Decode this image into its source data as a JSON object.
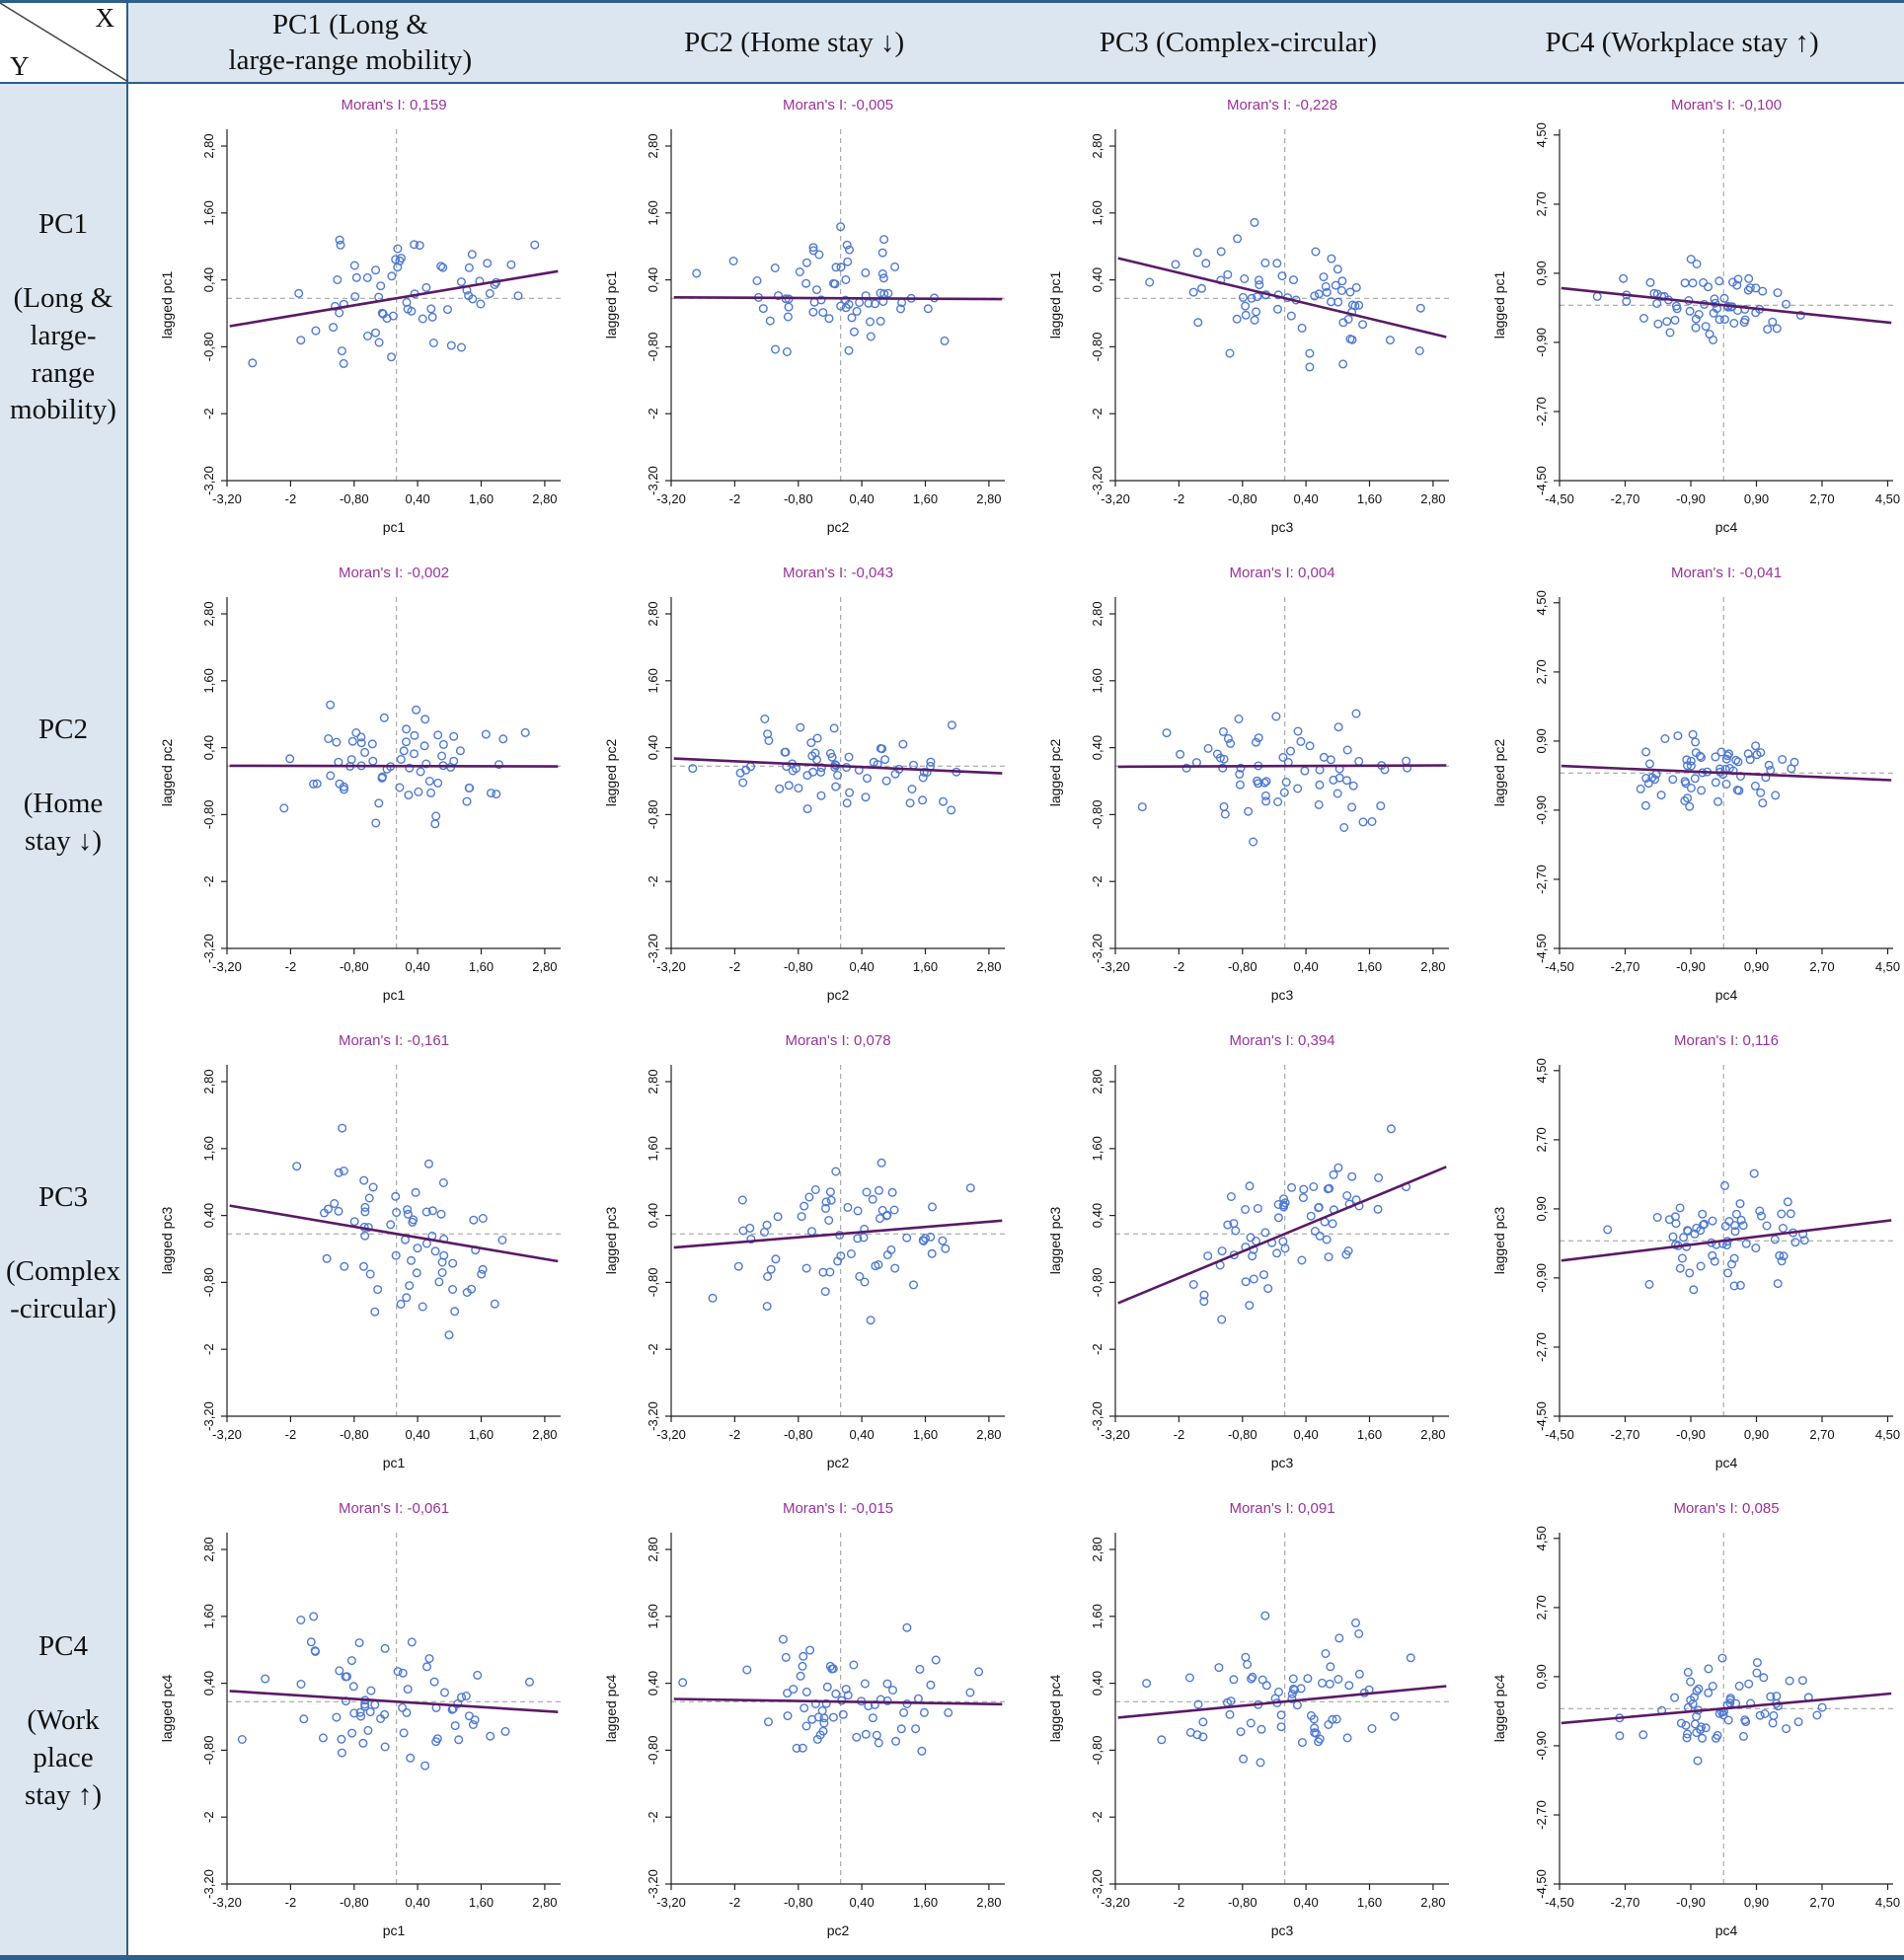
{
  "style": {
    "accent_border": "#2c5f8a",
    "header_bg": "#dce6f1",
    "title_color": "#993399",
    "regression_color": "#5a1a66",
    "point_color": "#4f7ad1"
  },
  "table": {
    "corner": {
      "x": "X",
      "y": "Y"
    },
    "col_headers": [
      "PC1 (Long &\nlarge-range mobility)",
      "PC2 (Home stay ↓)",
      "PC3 (Complex-circular)",
      "PC4 (Workplace stay ↑)"
    ],
    "row_headers": [
      "PC1\n\n(Long &\nlarge-\nrange\nmobility)",
      "PC2\n\n(Home\nstay ↓)",
      "PC3\n\n(Complex\n-circular)",
      "PC4\n\n(Work\nplace\nstay ↑)"
    ]
  },
  "chart_data": [
    {
      "type": "scatter",
      "title": "Moran's I: 0,159",
      "moran_i": 0.159,
      "xlabel": "pc1",
      "ylabel": "lagged pc1",
      "x_tick_values": [
        -3.2,
        -2,
        -0.8,
        0.4,
        1.6,
        2.8
      ],
      "x_tick_labels": [
        "-3,20",
        "-2",
        "-0,80",
        "0,40",
        "1,60",
        "2,80"
      ],
      "y_tick_values": [
        -3.2,
        -2,
        -0.8,
        0.4,
        1.6,
        2.8
      ],
      "y_tick_labels": [
        "-3,20",
        "-2",
        "-0,80",
        "0,40",
        "1,60",
        "2,80"
      ],
      "xlim": [
        -3.2,
        3.1
      ],
      "ylim": [
        -3.2,
        3.1
      ],
      "mean_x": 0,
      "mean_y": 0.07,
      "n_points": 66,
      "seed": 7187,
      "x_sd": 1.05,
      "noise_sd": 0.52
    },
    {
      "type": "scatter",
      "title": "Moran's I: -0,005",
      "moran_i": -0.005,
      "xlabel": "pc2",
      "ylabel": "lagged pc1",
      "x_tick_values": [
        -3.2,
        -2,
        -0.8,
        0.4,
        1.6,
        2.8
      ],
      "x_tick_labels": [
        "-3,20",
        "-2",
        "-0,80",
        "0,40",
        "1,60",
        "2,80"
      ],
      "y_tick_values": [
        -3.2,
        -2,
        -0.8,
        0.4,
        1.6,
        2.8
      ],
      "y_tick_labels": [
        "-3,20",
        "-2",
        "-0,80",
        "0,40",
        "1,60",
        "2,80"
      ],
      "xlim": [
        -3.2,
        3.1
      ],
      "ylim": [
        -3.2,
        3.1
      ],
      "mean_x": 0,
      "mean_y": 0.07,
      "n_points": 66,
      "seed": 10459,
      "x_sd": 1.05,
      "noise_sd": 0.52
    },
    {
      "type": "scatter",
      "title": "Moran's I: -0,228",
      "moran_i": -0.228,
      "xlabel": "pc3",
      "ylabel": "lagged pc1",
      "x_tick_values": [
        -3.2,
        -2,
        -0.8,
        0.4,
        1.6,
        2.8
      ],
      "x_tick_labels": [
        "-3,20",
        "-2",
        "-0,80",
        "0,40",
        "1,60",
        "2,80"
      ],
      "y_tick_values": [
        -3.2,
        -2,
        -0.8,
        0.4,
        1.6,
        2.8
      ],
      "y_tick_labels": [
        "-3,20",
        "-2",
        "-0,80",
        "0,40",
        "1,60",
        "2,80"
      ],
      "xlim": [
        -3.2,
        3.1
      ],
      "ylim": [
        -3.2,
        3.1
      ],
      "mean_x": 0,
      "mean_y": 0.07,
      "n_points": 66,
      "seed": 22193,
      "x_sd": 1.05,
      "noise_sd": 0.52
    },
    {
      "type": "scatter",
      "title": "Moran's I: -0,100",
      "moran_i": -0.1,
      "xlabel": "pc4",
      "ylabel": "lagged pc1",
      "x_tick_values": [
        -4.5,
        -2.7,
        -0.9,
        0.9,
        2.7,
        4.5
      ],
      "x_tick_labels": [
        "-4,50",
        "-2,70",
        "-0,90",
        "0,90",
        "2,70",
        "4,50"
      ],
      "y_tick_values": [
        -4.5,
        -2.7,
        -0.9,
        0.9,
        2.7,
        4.5
      ],
      "y_tick_labels": [
        "-4,50",
        "-2,70",
        "-0,90",
        "0,90",
        "2,70",
        "4,50"
      ],
      "xlim": [
        -4.5,
        4.65
      ],
      "ylim": [
        -4.5,
        4.65
      ],
      "mean_x": 0,
      "mean_y": 0.07,
      "n_points": 66,
      "seed": 4099,
      "x_sd": 1.2,
      "noise_sd": 0.5
    },
    {
      "type": "scatter",
      "title": "Moran's I: -0,002",
      "moran_i": -0.002,
      "xlabel": "pc1",
      "ylabel": "lagged pc2",
      "x_tick_values": [
        -3.2,
        -2,
        -0.8,
        0.4,
        1.6,
        2.8
      ],
      "x_tick_labels": [
        "-3,20",
        "-2",
        "-0,80",
        "0,40",
        "1,60",
        "2,80"
      ],
      "y_tick_values": [
        -3.2,
        -2,
        -0.8,
        0.4,
        1.6,
        2.8
      ],
      "y_tick_labels": [
        "-3,20",
        "-2",
        "-0,80",
        "0,40",
        "1,60",
        "2,80"
      ],
      "xlim": [
        -3.2,
        3.1
      ],
      "ylim": [
        -3.2,
        3.1
      ],
      "mean_x": 0,
      "mean_y": 0.07,
      "n_points": 66,
      "seed": 15287,
      "x_sd": 1.05,
      "noise_sd": 0.5
    },
    {
      "type": "scatter",
      "title": "Moran's I: -0,043",
      "moran_i": -0.043,
      "xlabel": "pc2",
      "ylabel": "lagged pc2",
      "x_tick_values": [
        -3.2,
        -2,
        -0.8,
        0.4,
        1.6,
        2.8
      ],
      "x_tick_labels": [
        "-3,20",
        "-2",
        "-0,80",
        "0,40",
        "1,60",
        "2,80"
      ],
      "y_tick_values": [
        -3.2,
        -2,
        -0.8,
        0.4,
        1.6,
        2.8
      ],
      "y_tick_labels": [
        "-3,20",
        "-2",
        "-0,80",
        "0,40",
        "1,60",
        "2,80"
      ],
      "xlim": [
        -3.2,
        3.1
      ],
      "ylim": [
        -3.2,
        3.1
      ],
      "mean_x": 0,
      "mean_y": 0.07,
      "n_points": 66,
      "seed": 30011,
      "x_sd": 1.05,
      "noise_sd": 0.5
    },
    {
      "type": "scatter",
      "title": "Moran's I: 0,004",
      "moran_i": 0.004,
      "xlabel": "pc3",
      "ylabel": "lagged pc2",
      "x_tick_values": [
        -3.2,
        -2,
        -0.8,
        0.4,
        1.6,
        2.8
      ],
      "x_tick_labels": [
        "-3,20",
        "-2",
        "-0,80",
        "0,40",
        "1,60",
        "2,80"
      ],
      "y_tick_values": [
        -3.2,
        -2,
        -0.8,
        0.4,
        1.6,
        2.8
      ],
      "y_tick_labels": [
        "-3,20",
        "-2",
        "-0,80",
        "0,40",
        "1,60",
        "2,80"
      ],
      "xlim": [
        -3.2,
        3.1
      ],
      "ylim": [
        -3.2,
        3.1
      ],
      "mean_x": 0,
      "mean_y": 0.07,
      "n_points": 66,
      "seed": 8731,
      "x_sd": 1.05,
      "noise_sd": 0.5
    },
    {
      "type": "scatter",
      "title": "Moran's I: -0,041",
      "moran_i": -0.041,
      "xlabel": "pc4",
      "ylabel": "lagged pc2",
      "x_tick_values": [
        -4.5,
        -2.7,
        -0.9,
        0.9,
        2.7,
        4.5
      ],
      "x_tick_labels": [
        "-4,50",
        "-2,70",
        "-0,90",
        "0,90",
        "2,70",
        "4,50"
      ],
      "y_tick_values": [
        -4.5,
        -2.7,
        -0.9,
        0.9,
        2.7,
        4.5
      ],
      "y_tick_labels": [
        "-4,50",
        "-2,70",
        "-0,90",
        "0,90",
        "2,70",
        "4,50"
      ],
      "xlim": [
        -4.5,
        4.65
      ],
      "ylim": [
        -4.5,
        4.65
      ],
      "mean_x": 0,
      "mean_y": 0.07,
      "n_points": 66,
      "seed": 19433,
      "x_sd": 1.2,
      "noise_sd": 0.45
    },
    {
      "type": "scatter",
      "title": "Moran's I: -0,161",
      "moran_i": -0.161,
      "xlabel": "pc1",
      "ylabel": "lagged pc3",
      "x_tick_values": [
        -3.2,
        -2,
        -0.8,
        0.4,
        1.6,
        2.8
      ],
      "x_tick_labels": [
        "-3,20",
        "-2",
        "-0,80",
        "0,40",
        "1,60",
        "2,80"
      ],
      "y_tick_values": [
        -3.2,
        -2,
        -0.8,
        0.4,
        1.6,
        2.8
      ],
      "y_tick_labels": [
        "-3,20",
        "-2",
        "-0,80",
        "0,40",
        "1,60",
        "2,80"
      ],
      "xlim": [
        -3.2,
        3.1
      ],
      "ylim": [
        -3.2,
        3.1
      ],
      "mean_x": 0,
      "mean_y": 0.07,
      "n_points": 66,
      "seed": 27077,
      "x_sd": 1.05,
      "noise_sd": 0.66
    },
    {
      "type": "scatter",
      "title": "Moran's I: 0,078",
      "moran_i": 0.078,
      "xlabel": "pc2",
      "ylabel": "lagged pc3",
      "x_tick_values": [
        -3.2,
        -2,
        -0.8,
        0.4,
        1.6,
        2.8
      ],
      "x_tick_labels": [
        "-3,20",
        "-2",
        "-0,80",
        "0,40",
        "1,60",
        "2,80"
      ],
      "y_tick_values": [
        -3.2,
        -2,
        -0.8,
        0.4,
        1.6,
        2.8
      ],
      "y_tick_labels": [
        "-3,20",
        "-2",
        "-0,80",
        "0,40",
        "1,60",
        "2,80"
      ],
      "xlim": [
        -3.2,
        3.1
      ],
      "ylim": [
        -3.2,
        3.1
      ],
      "mean_x": 0,
      "mean_y": 0.07,
      "n_points": 66,
      "seed": 3863,
      "x_sd": 1.05,
      "noise_sd": 0.66
    },
    {
      "type": "scatter",
      "title": "Moran's I: 0,394",
      "moran_i": 0.394,
      "xlabel": "pc3",
      "ylabel": "lagged pc3",
      "x_tick_values": [
        -3.2,
        -2,
        -0.8,
        0.4,
        1.6,
        2.8
      ],
      "x_tick_labels": [
        "-3,20",
        "-2",
        "-0,80",
        "0,40",
        "1,60",
        "2,80"
      ],
      "y_tick_values": [
        -3.2,
        -2,
        -0.8,
        0.4,
        1.6,
        2.8
      ],
      "y_tick_labels": [
        "-3,20",
        "-2",
        "-0,80",
        "0,40",
        "1,60",
        "2,80"
      ],
      "xlim": [
        -3.2,
        3.1
      ],
      "ylim": [
        -3.2,
        3.1
      ],
      "mean_x": 0,
      "mean_y": 0.07,
      "n_points": 66,
      "seed": 12919,
      "x_sd": 1.05,
      "noise_sd": 0.6
    },
    {
      "type": "scatter",
      "title": "Moran's I: 0,116",
      "moran_i": 0.116,
      "xlabel": "pc4",
      "ylabel": "lagged pc3",
      "x_tick_values": [
        -4.5,
        -2.7,
        -0.9,
        0.9,
        2.7,
        4.5
      ],
      "x_tick_labels": [
        "-4,50",
        "-2,70",
        "-0,90",
        "0,90",
        "2,70",
        "4,50"
      ],
      "y_tick_values": [
        -4.5,
        -2.7,
        -0.9,
        0.9,
        2.7,
        4.5
      ],
      "y_tick_labels": [
        "-4,50",
        "-2,70",
        "-0,90",
        "0,90",
        "2,70",
        "4,50"
      ],
      "xlim": [
        -4.5,
        4.65
      ],
      "ylim": [
        -4.5,
        4.65
      ],
      "mean_x": 0,
      "mean_y": 0.07,
      "n_points": 66,
      "seed": 24593,
      "x_sd": 1.2,
      "noise_sd": 0.6
    },
    {
      "type": "scatter",
      "title": "Moran's I: -0,061",
      "moran_i": -0.061,
      "xlabel": "pc1",
      "ylabel": "lagged pc4",
      "x_tick_values": [
        -3.2,
        -2,
        -0.8,
        0.4,
        1.6,
        2.8
      ],
      "x_tick_labels": [
        "-3,20",
        "-2",
        "-0,80",
        "0,40",
        "1,60",
        "2,80"
      ],
      "y_tick_values": [
        -3.2,
        -2,
        -0.8,
        0.4,
        1.6,
        2.8
      ],
      "y_tick_labels": [
        "-3,20",
        "-2",
        "-0,80",
        "0,40",
        "1,60",
        "2,80"
      ],
      "xlim": [
        -3.2,
        3.1
      ],
      "ylim": [
        -3.2,
        3.1
      ],
      "mean_x": 0,
      "mean_y": 0.07,
      "n_points": 66,
      "seed": 31397,
      "x_sd": 1.05,
      "noise_sd": 0.56
    },
    {
      "type": "scatter",
      "title": "Moran's I: -0,015",
      "moran_i": -0.015,
      "xlabel": "pc2",
      "ylabel": "lagged pc4",
      "x_tick_values": [
        -3.2,
        -2,
        -0.8,
        0.4,
        1.6,
        2.8
      ],
      "x_tick_labels": [
        "-3,20",
        "-2",
        "-0,80",
        "0,40",
        "1,60",
        "2,80"
      ],
      "y_tick_values": [
        -3.2,
        -2,
        -0.8,
        0.4,
        1.6,
        2.8
      ],
      "y_tick_labels": [
        "-3,20",
        "-2",
        "-0,80",
        "0,40",
        "1,60",
        "2,80"
      ],
      "xlim": [
        -3.2,
        3.1
      ],
      "ylim": [
        -3.2,
        3.1
      ],
      "mean_x": 0,
      "mean_y": 0.07,
      "n_points": 66,
      "seed": 6553,
      "x_sd": 1.05,
      "noise_sd": 0.56
    },
    {
      "type": "scatter",
      "title": "Moran's I: 0,091",
      "moran_i": 0.091,
      "xlabel": "pc3",
      "ylabel": "lagged pc4",
      "x_tick_values": [
        -3.2,
        -2,
        -0.8,
        0.4,
        1.6,
        2.8
      ],
      "x_tick_labels": [
        "-3,20",
        "-2",
        "-0,80",
        "0,40",
        "1,60",
        "2,80"
      ],
      "y_tick_values": [
        -3.2,
        -2,
        -0.8,
        0.4,
        1.6,
        2.8
      ],
      "y_tick_labels": [
        "-3,20",
        "-2",
        "-0,80",
        "0,40",
        "1,60",
        "2,80"
      ],
      "xlim": [
        -3.2,
        3.1
      ],
      "ylim": [
        -3.2,
        3.1
      ],
      "mean_x": 0,
      "mean_y": 0.07,
      "n_points": 66,
      "seed": 17389,
      "x_sd": 1.05,
      "noise_sd": 0.6
    },
    {
      "type": "scatter",
      "title": "Moran's I: 0,085",
      "moran_i": 0.085,
      "xlabel": "pc4",
      "ylabel": "lagged pc4",
      "x_tick_values": [
        -4.5,
        -2.7,
        -0.9,
        0.9,
        2.7,
        4.5
      ],
      "x_tick_labels": [
        "-4,50",
        "-2,70",
        "-0,90",
        "0,90",
        "2,70",
        "4,50"
      ],
      "y_tick_values": [
        -4.5,
        -2.7,
        -0.9,
        0.9,
        2.7,
        4.5
      ],
      "y_tick_labels": [
        "-4,50",
        "-2,70",
        "-0,90",
        "0,90",
        "2,70",
        "4,50"
      ],
      "xlim": [
        -4.5,
        4.65
      ],
      "ylim": [
        -4.5,
        4.65
      ],
      "mean_x": 0,
      "mean_y": 0.07,
      "n_points": 66,
      "seed": 28657,
      "x_sd": 1.2,
      "noise_sd": 0.55
    }
  ]
}
